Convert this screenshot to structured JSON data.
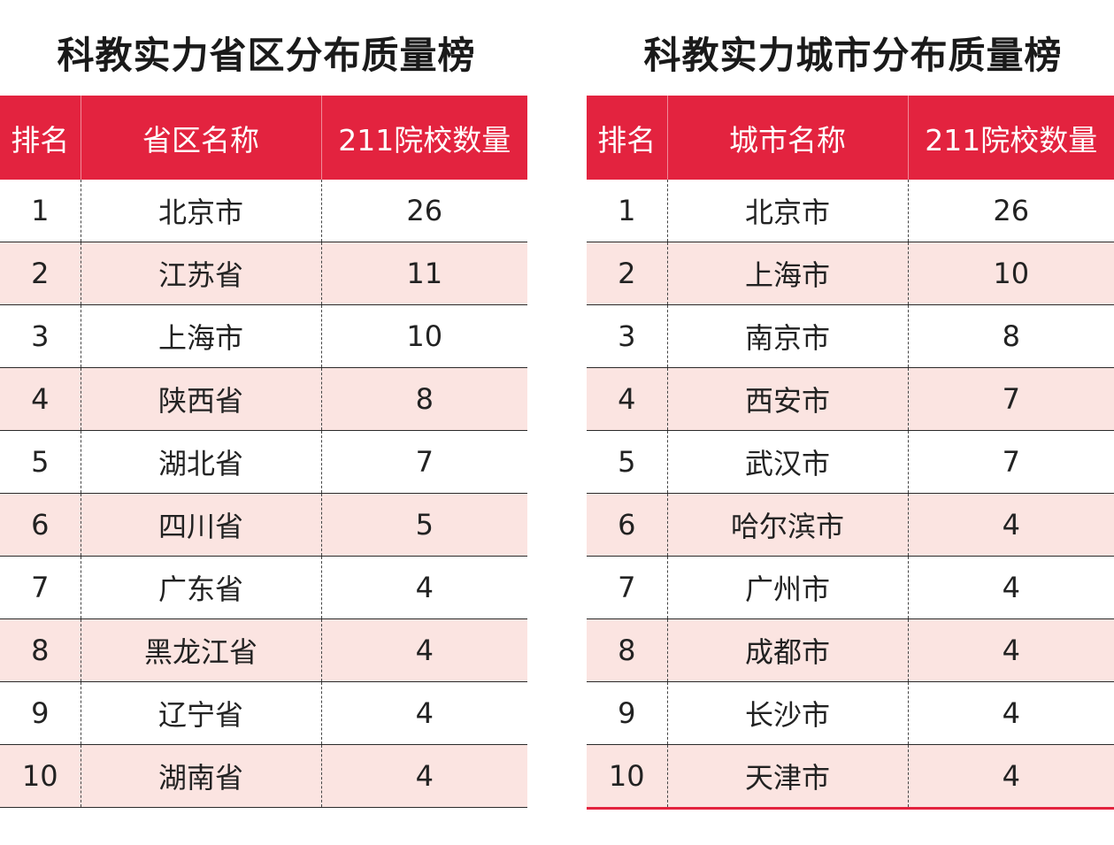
{
  "left_table": {
    "title": "科教实力省区分布质量榜",
    "headers": [
      "排名",
      "省区名称",
      "211院校数量"
    ],
    "rows": [
      [
        "1",
        "北京市",
        "26"
      ],
      [
        "2",
        "江苏省",
        "11"
      ],
      [
        "3",
        "上海市",
        "10"
      ],
      [
        "4",
        "陕西省",
        "8"
      ],
      [
        "5",
        "湖北省",
        "7"
      ],
      [
        "6",
        "四川省",
        "5"
      ],
      [
        "7",
        "广东省",
        "4"
      ],
      [
        "8",
        "黑龙江省",
        "4"
      ],
      [
        "9",
        "辽宁省",
        "4"
      ],
      [
        "10",
        "湖南省",
        "4"
      ]
    ]
  },
  "right_table": {
    "title": "科教实力城市分布质量榜",
    "headers": [
      "排名",
      "城市名称",
      "211院校数量"
    ],
    "rows": [
      [
        "1",
        "北京市",
        "26"
      ],
      [
        "2",
        "上海市",
        "10"
      ],
      [
        "3",
        "南京市",
        "8"
      ],
      [
        "4",
        "西安市",
        "7"
      ],
      [
        "5",
        "武汉市",
        "7"
      ],
      [
        "6",
        "哈尔滨市",
        "4"
      ],
      [
        "7",
        "广州市",
        "4"
      ],
      [
        "8",
        "成都市",
        "4"
      ],
      [
        "9",
        "长沙市",
        "4"
      ],
      [
        "10",
        "天津市",
        "4"
      ]
    ]
  },
  "colors": {
    "header_bg": "#e3233f",
    "header_text": "#ffffff",
    "stripe_bg": "#fbe4e1"
  }
}
